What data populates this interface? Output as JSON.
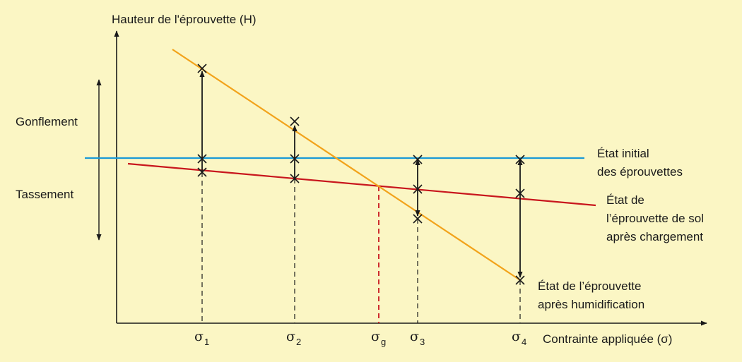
{
  "y_axis_label": "Hauteur de l'éprouvette (H)",
  "x_axis_label": "Contrainte appliquée (σ)",
  "left_labels": {
    "up": "Gonflement",
    "down": "Tassement"
  },
  "lines": {
    "initial": {
      "label_lines": [
        "État initial",
        "des éprouvettes"
      ],
      "color": "#1a9ad6"
    },
    "loaded": {
      "label_lines": [
        "État de",
        "l’éprouvette de sol",
        "après chargement"
      ],
      "color": "#c8161d"
    },
    "wetted": {
      "label_lines": [
        "État de l’éprouvette",
        "après humidification"
      ],
      "color": "#f2a31b"
    }
  },
  "ticks": [
    {
      "symbol": "σ",
      "sub": "1"
    },
    {
      "symbol": "σ",
      "sub": "2"
    },
    {
      "symbol": "σ",
      "sub": "g"
    },
    {
      "symbol": "σ",
      "sub": "3"
    },
    {
      "symbol": "σ",
      "sub": "4"
    }
  ],
  "colors": {
    "background": "#fbf6c4",
    "axis": "#1a1a1a",
    "guide_sigma_g": "#c8161d"
  }
}
